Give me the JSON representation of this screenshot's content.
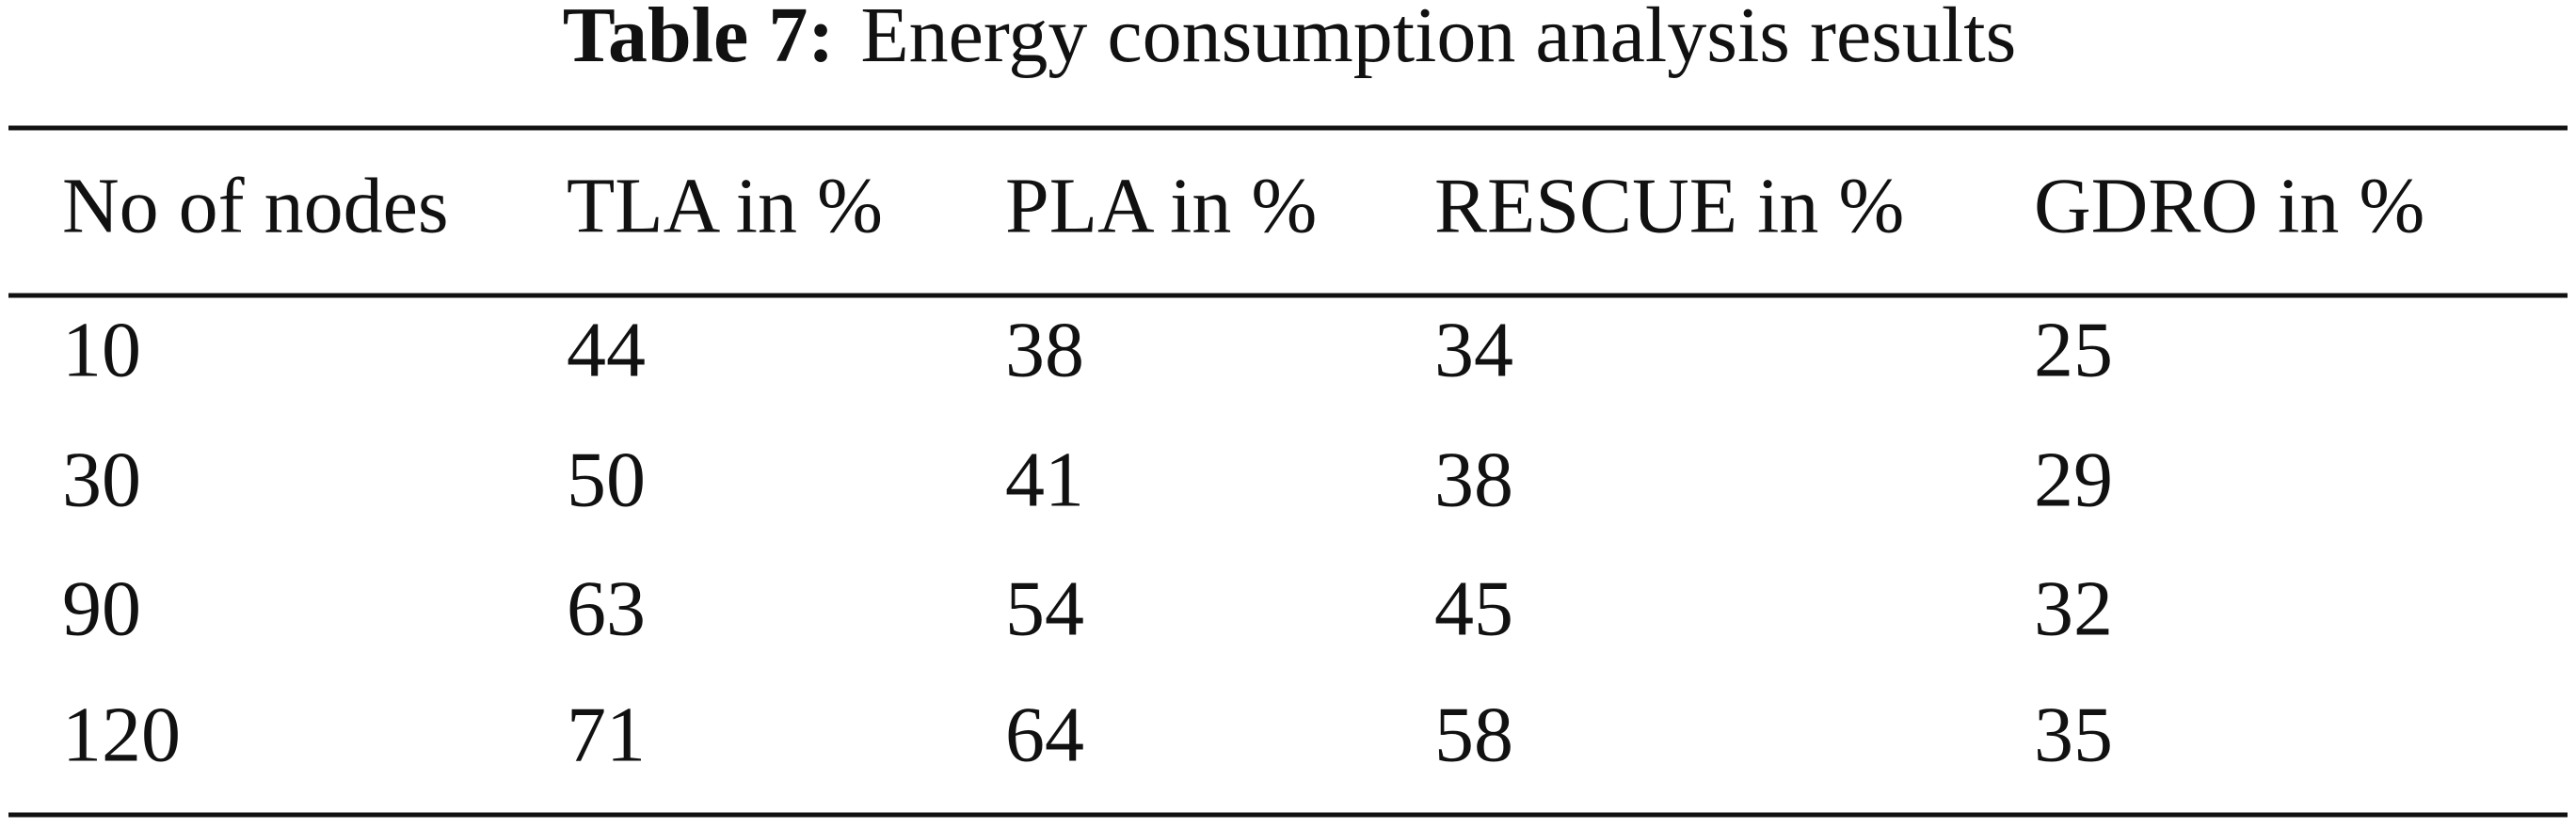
{
  "caption": {
    "label": "Table 7:",
    "text": "Energy consumption analysis results"
  },
  "table": {
    "header": [
      "No of nodes",
      "TLA in %",
      "PLA in %",
      "RESCUE in %",
      "GDRO in %"
    ],
    "rows": [
      [
        10,
        44,
        38,
        34,
        25
      ],
      [
        30,
        50,
        41,
        38,
        29
      ],
      [
        90,
        63,
        54,
        45,
        32
      ],
      [
        120,
        71,
        64,
        58,
        35
      ]
    ]
  }
}
